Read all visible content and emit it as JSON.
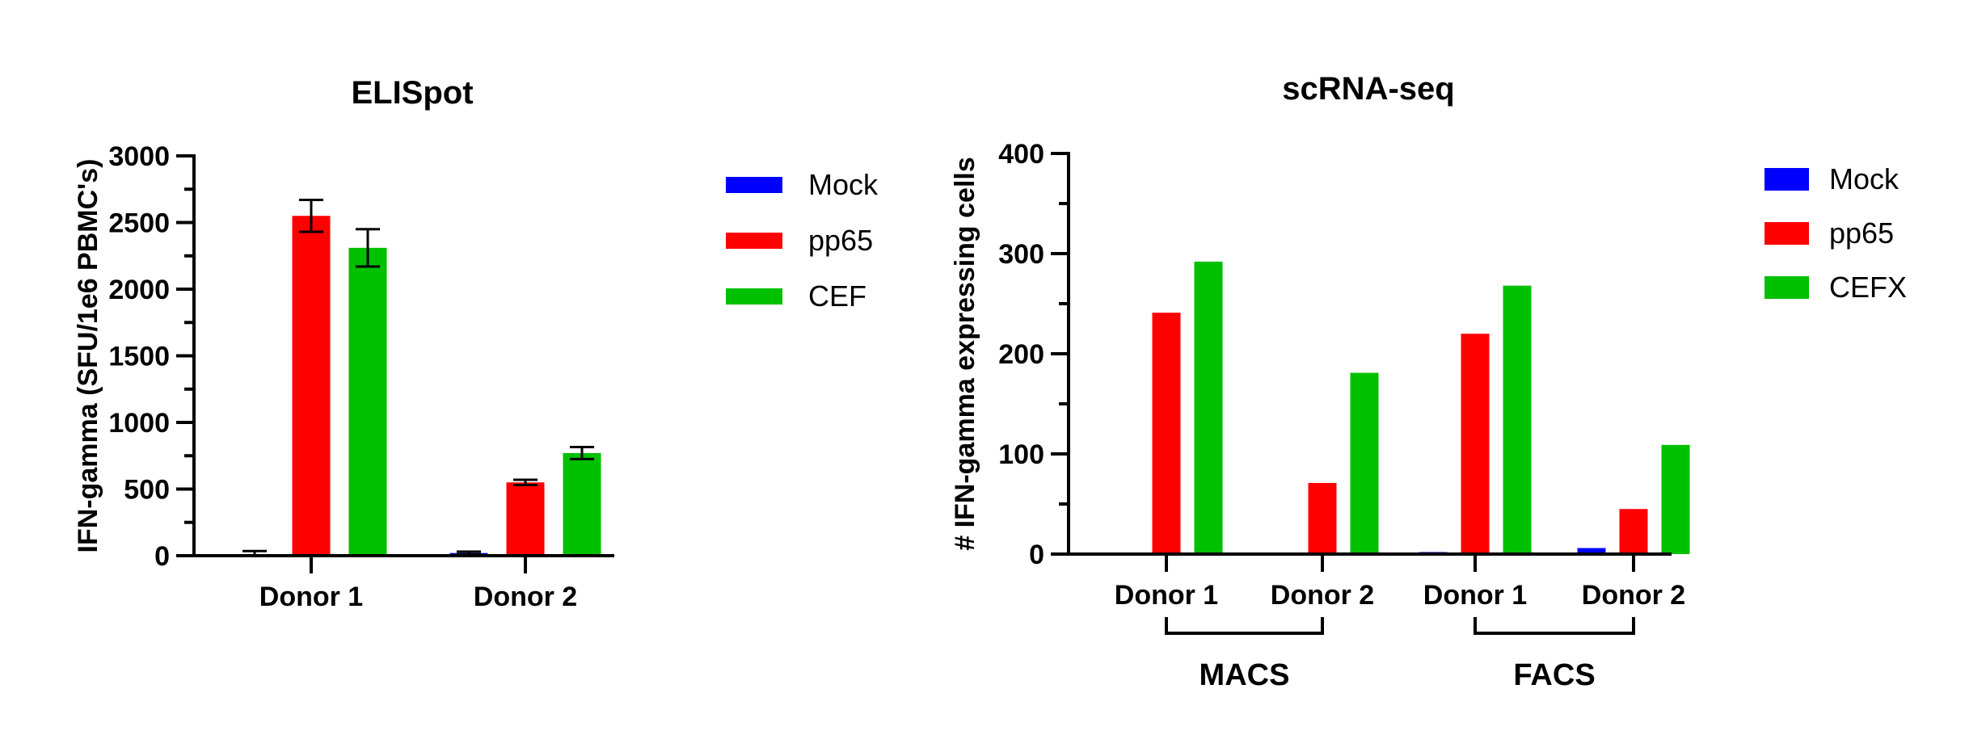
{
  "charts": [
    {
      "type": "bar",
      "title": "ELISpot",
      "ylabel": "IFN-gamma (SFU/1e6 PBMC's)",
      "ylim": [
        0,
        3000
      ],
      "yticks": [
        "0",
        "500",
        "1000",
        "1500",
        "2000",
        "2500",
        "3000"
      ],
      "categories": [
        "Donor 1",
        "Donor 2"
      ],
      "series": [
        {
          "name": "Mock",
          "color": "#0000ff",
          "values": [
            10,
            20
          ],
          "errors": [
            25,
            10
          ]
        },
        {
          "name": "pp65",
          "color": "#ff0000",
          "values": [
            2550,
            550
          ],
          "errors": [
            120,
            20
          ]
        },
        {
          "name": "CEF",
          "color": "#00c000",
          "values": [
            2310,
            770
          ],
          "errors": [
            140,
            45
          ]
        }
      ],
      "legend_position": "right"
    },
    {
      "type": "bar",
      "title": "scRNA-seq",
      "ylabel": "# IFN-gamma expressing cells",
      "ylim": [
        0,
        400
      ],
      "yticks": [
        "0",
        "100",
        "200",
        "300",
        "400"
      ],
      "categories": [
        "Donor 1",
        "Donor 2",
        "Donor 1",
        "Donor 2"
      ],
      "groups": [
        {
          "label": "MACS",
          "categories": [
            0,
            1
          ]
        },
        {
          "label": "FACS",
          "categories": [
            2,
            3
          ]
        }
      ],
      "series": [
        {
          "name": "Mock",
          "color": "#0000ff",
          "values": [
            0,
            0,
            2,
            6
          ]
        },
        {
          "name": "pp65",
          "color": "#ff0000",
          "values": [
            241,
            71,
            220,
            45
          ]
        },
        {
          "name": "CEFX",
          "color": "#00c000",
          "values": [
            292,
            181,
            268,
            109
          ]
        }
      ],
      "legend_position": "right"
    }
  ]
}
